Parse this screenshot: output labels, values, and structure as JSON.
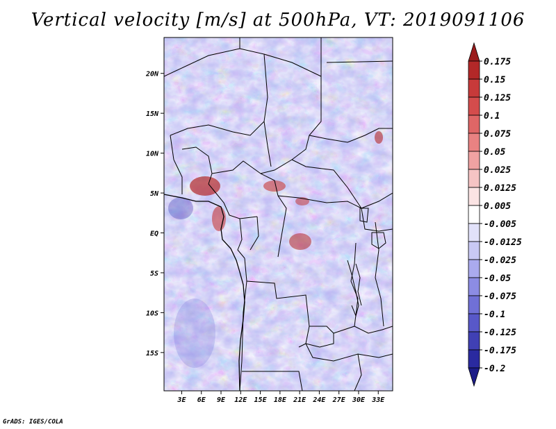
{
  "chart_data": {
    "type": "heatmap",
    "title": "Vertical velocity [m/s] at 500hPa, VT: 2019091106",
    "variable": "Vertical velocity",
    "units": "m/s",
    "level": "500hPa",
    "valid_time": "2019091106",
    "x_ticks": [
      "3E",
      "6E",
      "9E",
      "12E",
      "15E",
      "18E",
      "21E",
      "24E",
      "27E",
      "30E",
      "33E"
    ],
    "x_tick_values": [
      3,
      6,
      9,
      12,
      15,
      18,
      21,
      24,
      27,
      30,
      33
    ],
    "y_ticks": [
      "20N",
      "15N",
      "10N",
      "5N",
      "EQ",
      "5S",
      "10S",
      "15S"
    ],
    "y_tick_values": [
      20,
      15,
      10,
      5,
      0,
      -5,
      -10,
      -15
    ],
    "xlim": [
      0.3,
      35.2
    ],
    "ylim": [
      -19.8,
      24.5
    ],
    "colorbar": {
      "levels": [
        "0.175",
        "0.15",
        "0.125",
        "0.1",
        "0.075",
        "0.05",
        "0.025",
        "0.0125",
        "0.005",
        "-0.005",
        "-0.0125",
        "-0.025",
        "-0.05",
        "-0.075",
        "-0.1",
        "-0.125",
        "-0.175",
        "-0.2"
      ],
      "colors": [
        "#9b1c1c",
        "#b32828",
        "#c73a3a",
        "#d44c4c",
        "#df6666",
        "#e98282",
        "#f0a2a2",
        "#f6c4c4",
        "#fbe4e4",
        "#ffffff",
        "#e2e2fa",
        "#c9c9f4",
        "#aaaaee",
        "#8c8ce4",
        "#7070d6",
        "#5858c8",
        "#4040b4",
        "#2a2aa0",
        "#1c1c88"
      ]
    }
  },
  "credit": "GrADS: IGES/COLA"
}
